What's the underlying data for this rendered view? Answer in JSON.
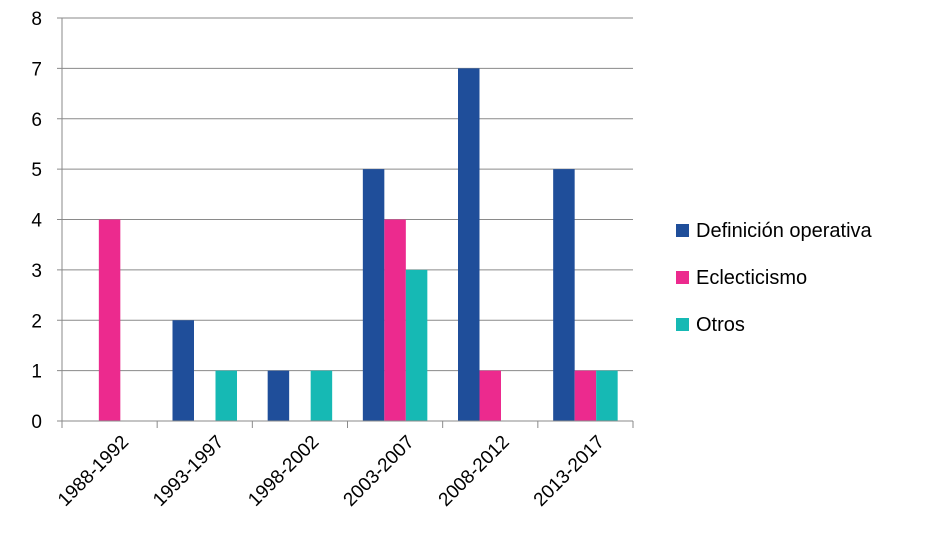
{
  "chart_data": {
    "type": "bar",
    "categories": [
      "1988-1992",
      "1993-1997",
      "1998-2002",
      "2003-2007",
      "2008-2012",
      "2013-2017"
    ],
    "series": [
      {
        "name": "Definición operativa",
        "color": "#1F4E9A",
        "values": [
          0,
          2,
          1,
          5,
          7,
          5
        ]
      },
      {
        "name": "Eclecticismo",
        "color": "#EC2A8E",
        "values": [
          4,
          0,
          0,
          4,
          1,
          1
        ]
      },
      {
        "name": "Otros",
        "color": "#16B9B4",
        "values": [
          0,
          1,
          1,
          3,
          0,
          1
        ]
      }
    ],
    "ylim": [
      0,
      8
    ],
    "yticks": [
      0,
      1,
      2,
      3,
      4,
      5,
      6,
      7,
      8
    ],
    "grid": true,
    "legend_position": "right",
    "xlabel": "",
    "ylabel": "",
    "title": ""
  }
}
